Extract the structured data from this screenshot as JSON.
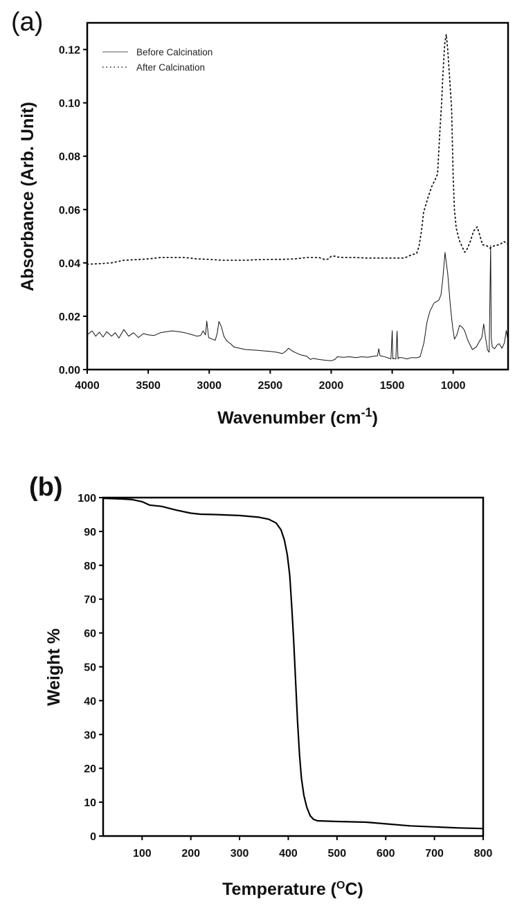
{
  "chart_data": [
    {
      "panel_label": "(a)",
      "type": "line",
      "xlabel": "Wavenumber (cm",
      "xlabel_sup": "-1",
      "xlabel_end": ")",
      "ylabel": "Absorbance (Arb. Unit)",
      "xlim": [
        4000,
        550
      ],
      "ylim": [
        0,
        0.13
      ],
      "x_reversed": true,
      "xticks": [
        "4000",
        "3500",
        "3000",
        "2500",
        "2000",
        "1500",
        "1000"
      ],
      "xtick_values": [
        4000,
        3500,
        3000,
        2500,
        2000,
        1500,
        1000
      ],
      "yticks": [
        "0.00",
        "0.02",
        "0.04",
        "0.06",
        "0.08",
        "0.10",
        "0.12"
      ],
      "ytick_values": [
        0,
        0.02,
        0.04,
        0.06,
        0.08,
        0.1,
        0.12
      ],
      "grid": false,
      "legend_position": "top-left",
      "series": [
        {
          "name": "Before Calcination",
          "style": "solid",
          "color": "#111111",
          "x": [
            4000,
            3960,
            3930,
            3900,
            3870,
            3840,
            3800,
            3770,
            3740,
            3700,
            3660,
            3620,
            3580,
            3540,
            3500,
            3450,
            3400,
            3350,
            3300,
            3250,
            3200,
            3150,
            3100,
            3070,
            3050,
            3030,
            3020,
            3005,
            2980,
            2950,
            2935,
            2920,
            2900,
            2880,
            2860,
            2850,
            2820,
            2800,
            2750,
            2700,
            2600,
            2500,
            2450,
            2400,
            2370,
            2350,
            2320,
            2300,
            2250,
            2200,
            2170,
            2150,
            2100,
            2050,
            2000,
            1970,
            1950,
            1900,
            1850,
            1800,
            1750,
            1700,
            1650,
            1620,
            1610,
            1600,
            1580,
            1540,
            1510,
            1500,
            1495,
            1490,
            1470,
            1460,
            1452,
            1445,
            1420,
            1380,
            1340,
            1300,
            1271,
            1240,
            1214,
            1190,
            1156,
            1118,
            1100,
            1085,
            1067,
            1045,
            1023,
            1005,
            990,
            970,
            947,
            925,
            908,
            880,
            842,
            810,
            784,
            765,
            750,
            735,
            718,
            705,
            693,
            688,
            680,
            660,
            640,
            622,
            600,
            580,
            565,
            555
          ],
          "y": [
            0.013,
            0.0145,
            0.0125,
            0.014,
            0.0122,
            0.0142,
            0.0125,
            0.0138,
            0.0118,
            0.015,
            0.0125,
            0.0138,
            0.012,
            0.0135,
            0.013,
            0.0128,
            0.0138,
            0.0142,
            0.0145,
            0.0142,
            0.0138,
            0.0132,
            0.0125,
            0.0128,
            0.0145,
            0.013,
            0.0182,
            0.012,
            0.0115,
            0.011,
            0.0135,
            0.018,
            0.016,
            0.0125,
            0.011,
            0.0105,
            0.0095,
            0.0085,
            0.008,
            0.0075,
            0.0072,
            0.0068,
            0.0065,
            0.006,
            0.007,
            0.008,
            0.007,
            0.0065,
            0.0055,
            0.005,
            0.0038,
            0.0042,
            0.0038,
            0.0035,
            0.0033,
            0.0038,
            0.0048,
            0.0046,
            0.0048,
            0.0045,
            0.0048,
            0.0046,
            0.005,
            0.0052,
            0.0078,
            0.0052,
            0.005,
            0.0045,
            0.004,
            0.0146,
            0.004,
            0.0042,
            0.004,
            0.0144,
            0.004,
            0.0045,
            0.0045,
            0.004,
            0.0045,
            0.0044,
            0.0048,
            0.01,
            0.018,
            0.022,
            0.025,
            0.026,
            0.028,
            0.034,
            0.0439,
            0.036,
            0.024,
            0.016,
            0.0114,
            0.013,
            0.0166,
            0.0158,
            0.0148,
            0.011,
            0.0075,
            0.0085,
            0.0107,
            0.012,
            0.0171,
            0.012,
            0.0073,
            0.0065,
            0.0465,
            0.012,
            0.0085,
            0.0078,
            0.0092,
            0.0097,
            0.008,
            0.01,
            0.0146,
            0.012
          ]
        },
        {
          "name": "After Calcination",
          "style": "dotted",
          "color": "#111111",
          "x": [
            4000,
            3900,
            3800,
            3750,
            3700,
            3600,
            3500,
            3400,
            3300,
            3200,
            3100,
            3000,
            2900,
            2800,
            2700,
            2600,
            2500,
            2400,
            2300,
            2200,
            2100,
            2050,
            2020,
            2000,
            1970,
            1950,
            1900,
            1800,
            1700,
            1600,
            1500,
            1400,
            1338,
            1300,
            1281,
            1260,
            1242,
            1210,
            1176,
            1150,
            1128,
            1109,
            1095,
            1085,
            1070,
            1057,
            1045,
            1030,
            1013,
            1000,
            990,
            975,
            950,
            927,
            905,
            889,
            860,
            832,
            803,
            780,
            760,
            727,
            700,
            660,
            620,
            584,
            550
          ],
          "y": [
            0.0395,
            0.0397,
            0.04,
            0.0405,
            0.041,
            0.0412,
            0.0415,
            0.042,
            0.042,
            0.042,
            0.0415,
            0.0413,
            0.041,
            0.041,
            0.041,
            0.0412,
            0.0413,
            0.0413,
            0.0415,
            0.042,
            0.042,
            0.0412,
            0.0415,
            0.0425,
            0.0425,
            0.0422,
            0.042,
            0.042,
            0.0418,
            0.0418,
            0.0418,
            0.0418,
            0.0431,
            0.0435,
            0.046,
            0.052,
            0.059,
            0.064,
            0.0686,
            0.071,
            0.0733,
            0.0894,
            0.1,
            0.11,
            0.122,
            0.1257,
            0.12,
            0.11,
            0.098,
            0.0723,
            0.06,
            0.053,
            0.0485,
            0.046,
            0.044,
            0.0449,
            0.048,
            0.052,
            0.0535,
            0.05,
            0.0468,
            0.0465,
            0.0455,
            0.0465,
            0.0468,
            0.048,
            0.047
          ]
        }
      ]
    },
    {
      "panel_label": "(b)",
      "type": "line",
      "xlabel": "Temperature (",
      "xlabel_sup": "O",
      "xlabel_end": "C)",
      "ylabel": "Weight %",
      "xlim": [
        20,
        800
      ],
      "ylim": [
        0,
        100
      ],
      "xticks": [
        "100",
        "200",
        "300",
        "400",
        "500",
        "600",
        "700",
        "800"
      ],
      "xtick_values": [
        100,
        200,
        300,
        400,
        500,
        600,
        700,
        800
      ],
      "yticks": [
        "0",
        "10",
        "20",
        "30",
        "40",
        "50",
        "60",
        "70",
        "80",
        "90",
        "100"
      ],
      "ytick_values": [
        0,
        10,
        20,
        30,
        40,
        50,
        60,
        70,
        80,
        90,
        100
      ],
      "grid": false,
      "series": [
        {
          "style": "solid",
          "color": "#000000",
          "x": [
            20,
            60,
            80,
            100,
            115,
            140,
            170,
            200,
            220,
            250,
            300,
            340,
            360,
            375,
            385,
            392,
            398,
            403,
            407,
            411,
            415,
            419,
            423,
            427,
            432,
            438,
            445,
            452,
            460,
            500,
            560,
            600,
            650,
            700,
            750,
            800
          ],
          "y": [
            99.8,
            99.6,
            99.4,
            98.8,
            97.8,
            97.4,
            96.3,
            95.4,
            95.1,
            95.0,
            94.7,
            94.2,
            93.6,
            92.5,
            90.5,
            87.5,
            83,
            77,
            68,
            58,
            46,
            34,
            24,
            17,
            12,
            8.5,
            6,
            4.9,
            4.5,
            4.3,
            4.1,
            3.6,
            3.0,
            2.7,
            2.4,
            2.2
          ]
        }
      ]
    }
  ]
}
